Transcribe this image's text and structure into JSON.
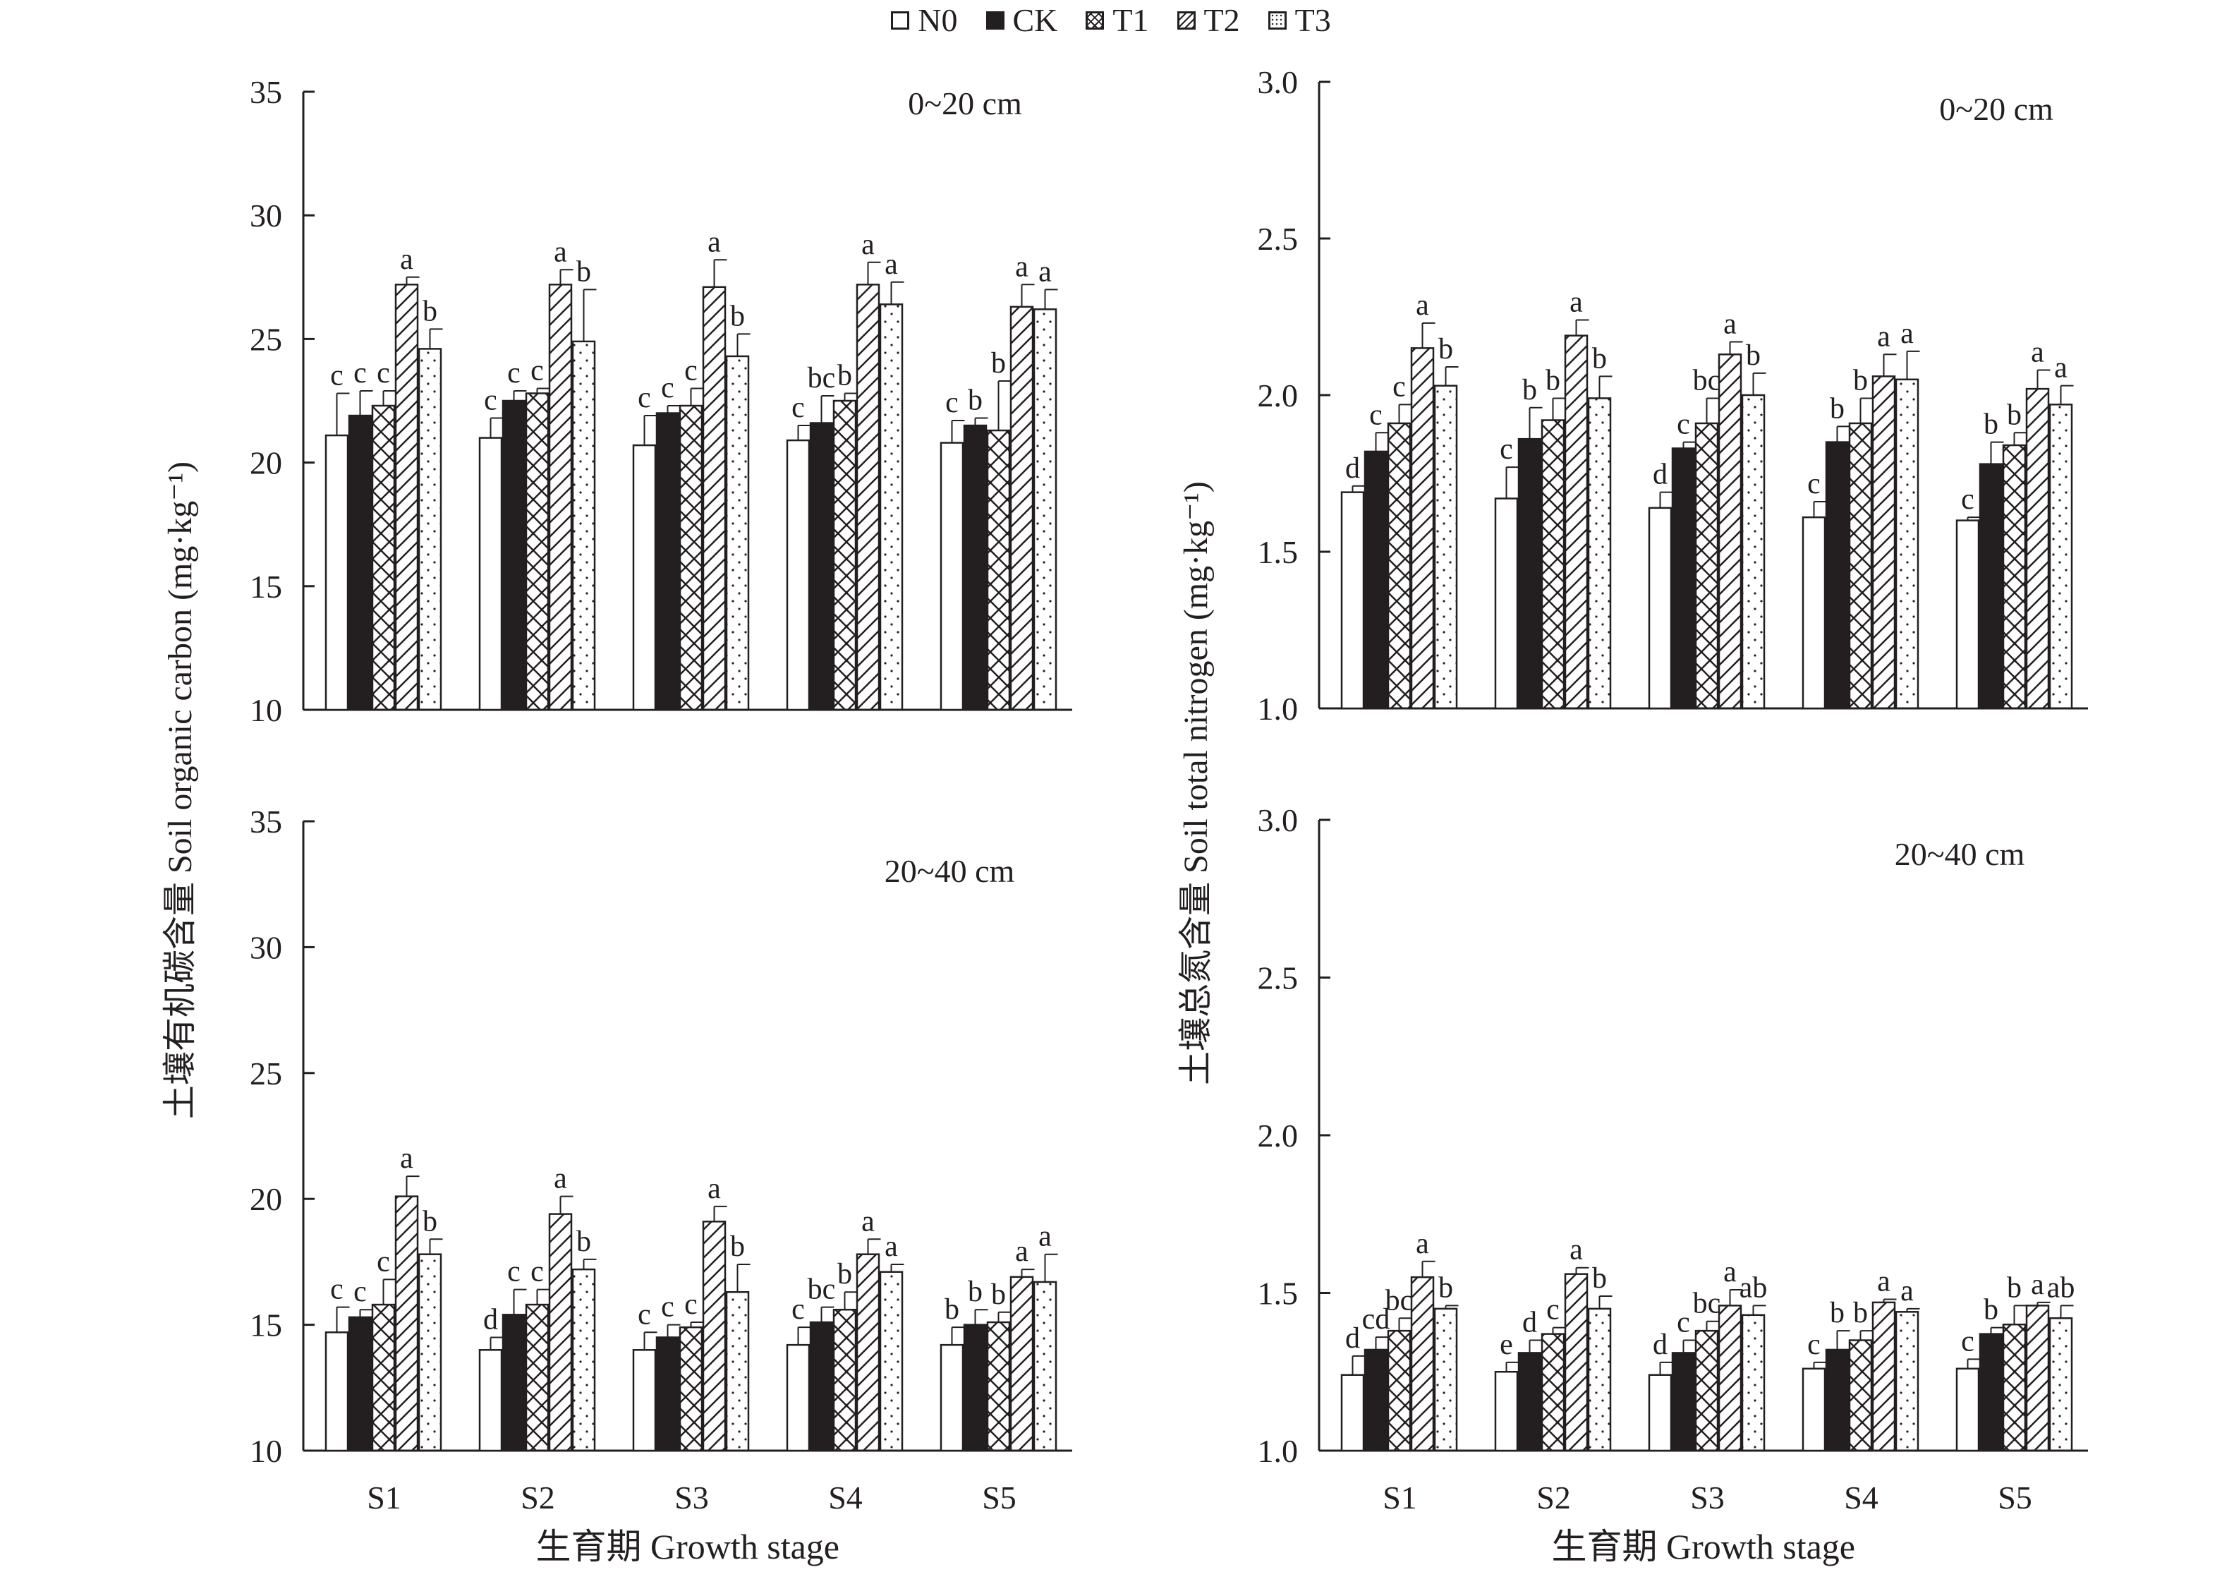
{
  "legend": [
    {
      "label": "N0",
      "pattern": "blank"
    },
    {
      "label": "CK",
      "pattern": "solid"
    },
    {
      "label": "T1",
      "pattern": "cross"
    },
    {
      "label": "T2",
      "pattern": "diagonal"
    },
    {
      "label": "T3",
      "pattern": "dots"
    }
  ],
  "y_label_left": "土壤有机碳含量 Soil organic carbon (mg·kg⁻¹)",
  "y_label_right": "土壤总氮含量 Soil total nitrogen (mg·kg⁻¹)",
  "x_label": "生育期 Growth stage",
  "chart_data": [
    {
      "type": "bar",
      "panel": "soc-0-20",
      "title": "0~20 cm",
      "categories": [
        "S1",
        "S2",
        "S3",
        "S4",
        "S5"
      ],
      "ylim": [
        10,
        35
      ],
      "yticks": [
        10,
        15,
        20,
        25,
        30,
        35
      ],
      "show_xticks": false,
      "series": [
        {
          "name": "N0",
          "values": [
            21.1,
            21.0,
            20.7,
            20.9,
            20.8
          ],
          "errors": [
            1.7,
            0.8,
            1.2,
            0.6,
            0.9
          ],
          "labels": [
            "c",
            "c",
            "c",
            "c",
            "c"
          ]
        },
        {
          "name": "CK",
          "values": [
            21.9,
            22.5,
            22.0,
            21.6,
            21.5
          ],
          "errors": [
            1.0,
            0.4,
            0.3,
            1.1,
            0.3
          ],
          "labels": [
            "c",
            "c",
            "c",
            "bc",
            "b"
          ]
        },
        {
          "name": "T1",
          "values": [
            22.3,
            22.8,
            22.3,
            22.5,
            21.3
          ],
          "errors": [
            0.6,
            0.2,
            0.7,
            0.3,
            2.0
          ],
          "labels": [
            "c",
            "c",
            "c",
            "b",
            "b"
          ]
        },
        {
          "name": "T2",
          "values": [
            27.2,
            27.2,
            27.1,
            27.2,
            26.3
          ],
          "errors": [
            0.3,
            0.6,
            1.1,
            0.9,
            0.9
          ],
          "labels": [
            "a",
            "a",
            "a",
            "a",
            "a"
          ]
        },
        {
          "name": "T3",
          "values": [
            24.6,
            24.9,
            24.3,
            26.4,
            26.2
          ],
          "errors": [
            0.8,
            2.1,
            0.9,
            0.9,
            0.8
          ],
          "labels": [
            "b",
            "b",
            "b",
            "a",
            "a"
          ]
        }
      ]
    },
    {
      "type": "bar",
      "panel": "soc-20-40",
      "title": "20~40 cm",
      "categories": [
        "S1",
        "S2",
        "S3",
        "S4",
        "S5"
      ],
      "ylim": [
        10,
        35
      ],
      "yticks": [
        10,
        15,
        20,
        25,
        30,
        35
      ],
      "show_xticks": true,
      "series": [
        {
          "name": "N0",
          "values": [
            14.7,
            14.0,
            14.0,
            14.2,
            14.2
          ],
          "errors": [
            1.0,
            0.5,
            0.7,
            0.7,
            0.7
          ],
          "labels": [
            "c",
            "d",
            "c",
            "c",
            "b"
          ]
        },
        {
          "name": "CK",
          "values": [
            15.3,
            15.4,
            14.5,
            15.1,
            15.0
          ],
          "errors": [
            0.3,
            1.0,
            0.5,
            0.6,
            0.6
          ],
          "labels": [
            "c",
            "c",
            "c",
            "bc",
            "b"
          ]
        },
        {
          "name": "T1",
          "values": [
            15.8,
            15.8,
            14.9,
            15.6,
            15.1
          ],
          "errors": [
            1.0,
            0.6,
            0.2,
            0.7,
            0.4
          ],
          "labels": [
            "c",
            "c",
            "c",
            "b",
            "b"
          ]
        },
        {
          "name": "T2",
          "values": [
            20.1,
            19.4,
            19.1,
            17.8,
            16.9
          ],
          "errors": [
            0.8,
            0.7,
            0.6,
            0.6,
            0.3
          ],
          "labels": [
            "a",
            "a",
            "a",
            "a",
            "a"
          ]
        },
        {
          "name": "T3",
          "values": [
            17.8,
            17.2,
            16.3,
            17.1,
            16.7
          ],
          "errors": [
            0.6,
            0.4,
            1.1,
            0.3,
            1.1
          ],
          "labels": [
            "b",
            "b",
            "b",
            "a",
            "a"
          ]
        }
      ]
    },
    {
      "type": "bar",
      "panel": "stn-0-20",
      "title": "0~20 cm",
      "categories": [
        "S1",
        "S2",
        "S3",
        "S4",
        "S5"
      ],
      "ylim": [
        1.0,
        3.0
      ],
      "yticks": [
        1.0,
        1.5,
        2.0,
        2.5,
        3.0
      ],
      "show_xticks": false,
      "series": [
        {
          "name": "N0",
          "values": [
            1.69,
            1.67,
            1.64,
            1.61,
            1.6
          ],
          "errors": [
            0.02,
            0.1,
            0.05,
            0.05,
            0.01
          ],
          "labels": [
            "d",
            "c",
            "d",
            "c",
            "c"
          ]
        },
        {
          "name": "CK",
          "values": [
            1.82,
            1.86,
            1.83,
            1.85,
            1.78
          ],
          "errors": [
            0.06,
            0.1,
            0.02,
            0.05,
            0.07
          ],
          "labels": [
            "c",
            "b",
            "c",
            "b",
            "b"
          ]
        },
        {
          "name": "T1",
          "values": [
            1.91,
            1.92,
            1.91,
            1.91,
            1.84
          ],
          "errors": [
            0.06,
            0.07,
            0.08,
            0.08,
            0.04
          ],
          "labels": [
            "c",
            "b",
            "bc",
            "b",
            "b"
          ]
        },
        {
          "name": "T2",
          "values": [
            2.15,
            2.19,
            2.13,
            2.06,
            2.02
          ],
          "errors": [
            0.08,
            0.05,
            0.04,
            0.07,
            0.06
          ],
          "labels": [
            "a",
            "a",
            "a",
            "a",
            "a"
          ]
        },
        {
          "name": "T3",
          "values": [
            2.03,
            1.99,
            2.0,
            2.05,
            1.97
          ],
          "errors": [
            0.06,
            0.07,
            0.07,
            0.09,
            0.06
          ],
          "labels": [
            "b",
            "b",
            "b",
            "a",
            "a"
          ]
        }
      ]
    },
    {
      "type": "bar",
      "panel": "stn-20-40",
      "title": "20~40 cm",
      "categories": [
        "S1",
        "S2",
        "S3",
        "S4",
        "S5"
      ],
      "ylim": [
        1.0,
        3.0
      ],
      "yticks": [
        1.0,
        1.5,
        2.0,
        2.5,
        3.0
      ],
      "show_xticks": true,
      "series": [
        {
          "name": "N0",
          "values": [
            1.24,
            1.25,
            1.24,
            1.26,
            1.26
          ],
          "errors": [
            0.06,
            0.03,
            0.04,
            0.02,
            0.03
          ],
          "labels": [
            "d",
            "e",
            "d",
            "c",
            "c"
          ]
        },
        {
          "name": "CK",
          "values": [
            1.32,
            1.31,
            1.31,
            1.32,
            1.37
          ],
          "errors": [
            0.04,
            0.04,
            0.04,
            0.06,
            0.02
          ],
          "labels": [
            "cd",
            "d",
            "c",
            "b",
            "b"
          ]
        },
        {
          "name": "T1",
          "values": [
            1.38,
            1.37,
            1.38,
            1.35,
            1.4
          ],
          "errors": [
            0.04,
            0.02,
            0.03,
            0.03,
            0.06
          ],
          "labels": [
            "bc",
            "c",
            "bc",
            "b",
            "b"
          ]
        },
        {
          "name": "T2",
          "values": [
            1.55,
            1.56,
            1.46,
            1.47,
            1.46
          ],
          "errors": [
            0.05,
            0.02,
            0.05,
            0.01,
            0.01
          ],
          "labels": [
            "a",
            "a",
            "a",
            "a",
            "a"
          ]
        },
        {
          "name": "T3",
          "values": [
            1.45,
            1.45,
            1.43,
            1.44,
            1.42
          ],
          "errors": [
            0.01,
            0.04,
            0.03,
            0.01,
            0.04
          ],
          "labels": [
            "b",
            "b",
            "ab",
            "a",
            "ab"
          ]
        }
      ]
    }
  ]
}
